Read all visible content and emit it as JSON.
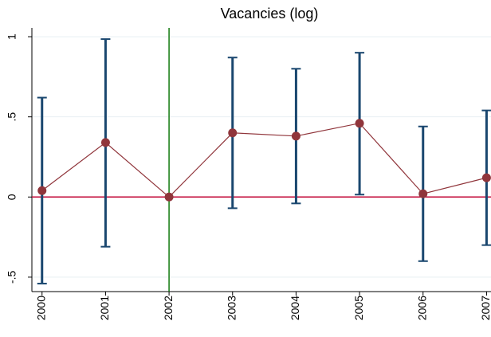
{
  "chart_data": {
    "type": "errorbar",
    "title": "Vacancies (log)",
    "x": [
      2000,
      2001,
      2002,
      2003,
      2004,
      2005,
      2006,
      2007
    ],
    "y": [
      0.04,
      0.34,
      0,
      0.4,
      0.38,
      0.46,
      0.02,
      0.12
    ],
    "ci_lower": [
      -0.54,
      -0.31,
      null,
      -0.07,
      -0.04,
      0.015,
      -0.4,
      -0.3
    ],
    "ci_upper": [
      0.62,
      0.985,
      null,
      0.87,
      0.8,
      0.9,
      0.44,
      0.54
    ],
    "xlim": [
      1999.84,
      2007.07
    ],
    "xticks": [
      2000,
      2001,
      2002,
      2003,
      2004,
      2005,
      2006,
      2007
    ],
    "ylim": [
      -0.59,
      1.055
    ],
    "yticks": [
      {
        "value": -0.5,
        "label": "-.5"
      },
      0,
      {
        "value": 0.5,
        "label": ".5"
      },
      1
    ],
    "grid": true,
    "xline": 2002,
    "yline": 0,
    "line_color": "#90353b",
    "point_color": "#90353b",
    "ci_color": "#1a476f",
    "xline_color": "#117a0f",
    "yline_color": "#c10534"
  }
}
